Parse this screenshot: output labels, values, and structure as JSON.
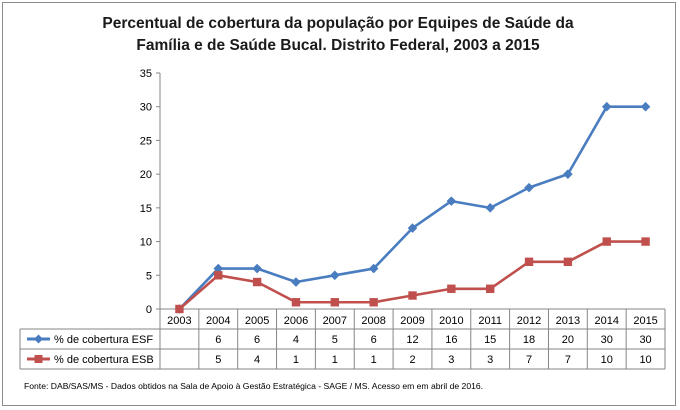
{
  "chart_data": {
    "type": "line",
    "title_lines": [
      "Percentual de cobertura da população por Equipes de Saúde da",
      "Família e de Saúde Bucal. Distrito Federal, 2003 a 2015"
    ],
    "categories": [
      "2003",
      "2004",
      "2005",
      "2006",
      "2007",
      "2008",
      "2009",
      "2010",
      "2011",
      "2012",
      "2013",
      "2014",
      "2015"
    ],
    "yticks": [
      0,
      5,
      10,
      15,
      20,
      25,
      30,
      35
    ],
    "ylim": [
      0,
      35
    ],
    "grid": false,
    "series": [
      {
        "name": "% de cobertura ESF",
        "values": [
          0,
          6,
          6,
          4,
          5,
          6,
          12,
          16,
          15,
          18,
          20,
          30,
          30
        ],
        "table_values": [
          "",
          "6",
          "6",
          "4",
          "5",
          "6",
          "12",
          "16",
          "15",
          "18",
          "20",
          "30",
          "30"
        ],
        "color": "#4a7dc0",
        "marker": "diamond"
      },
      {
        "name": "% de cobertura ESB",
        "values": [
          0,
          5,
          4,
          1,
          1,
          1,
          2,
          3,
          3,
          7,
          7,
          10,
          10
        ],
        "table_values": [
          "",
          "5",
          "4",
          "1",
          "1",
          "1",
          "2",
          "3",
          "3",
          "7",
          "7",
          "10",
          "10"
        ],
        "color": "#c0504d",
        "marker": "square"
      }
    ],
    "source": "Fonte:  DAB/SAS/MS - Dados obtidos na Sala de Apoio à Gestão Estratégica - SAGE / MS. Acesso em em abril  de  2016."
  }
}
